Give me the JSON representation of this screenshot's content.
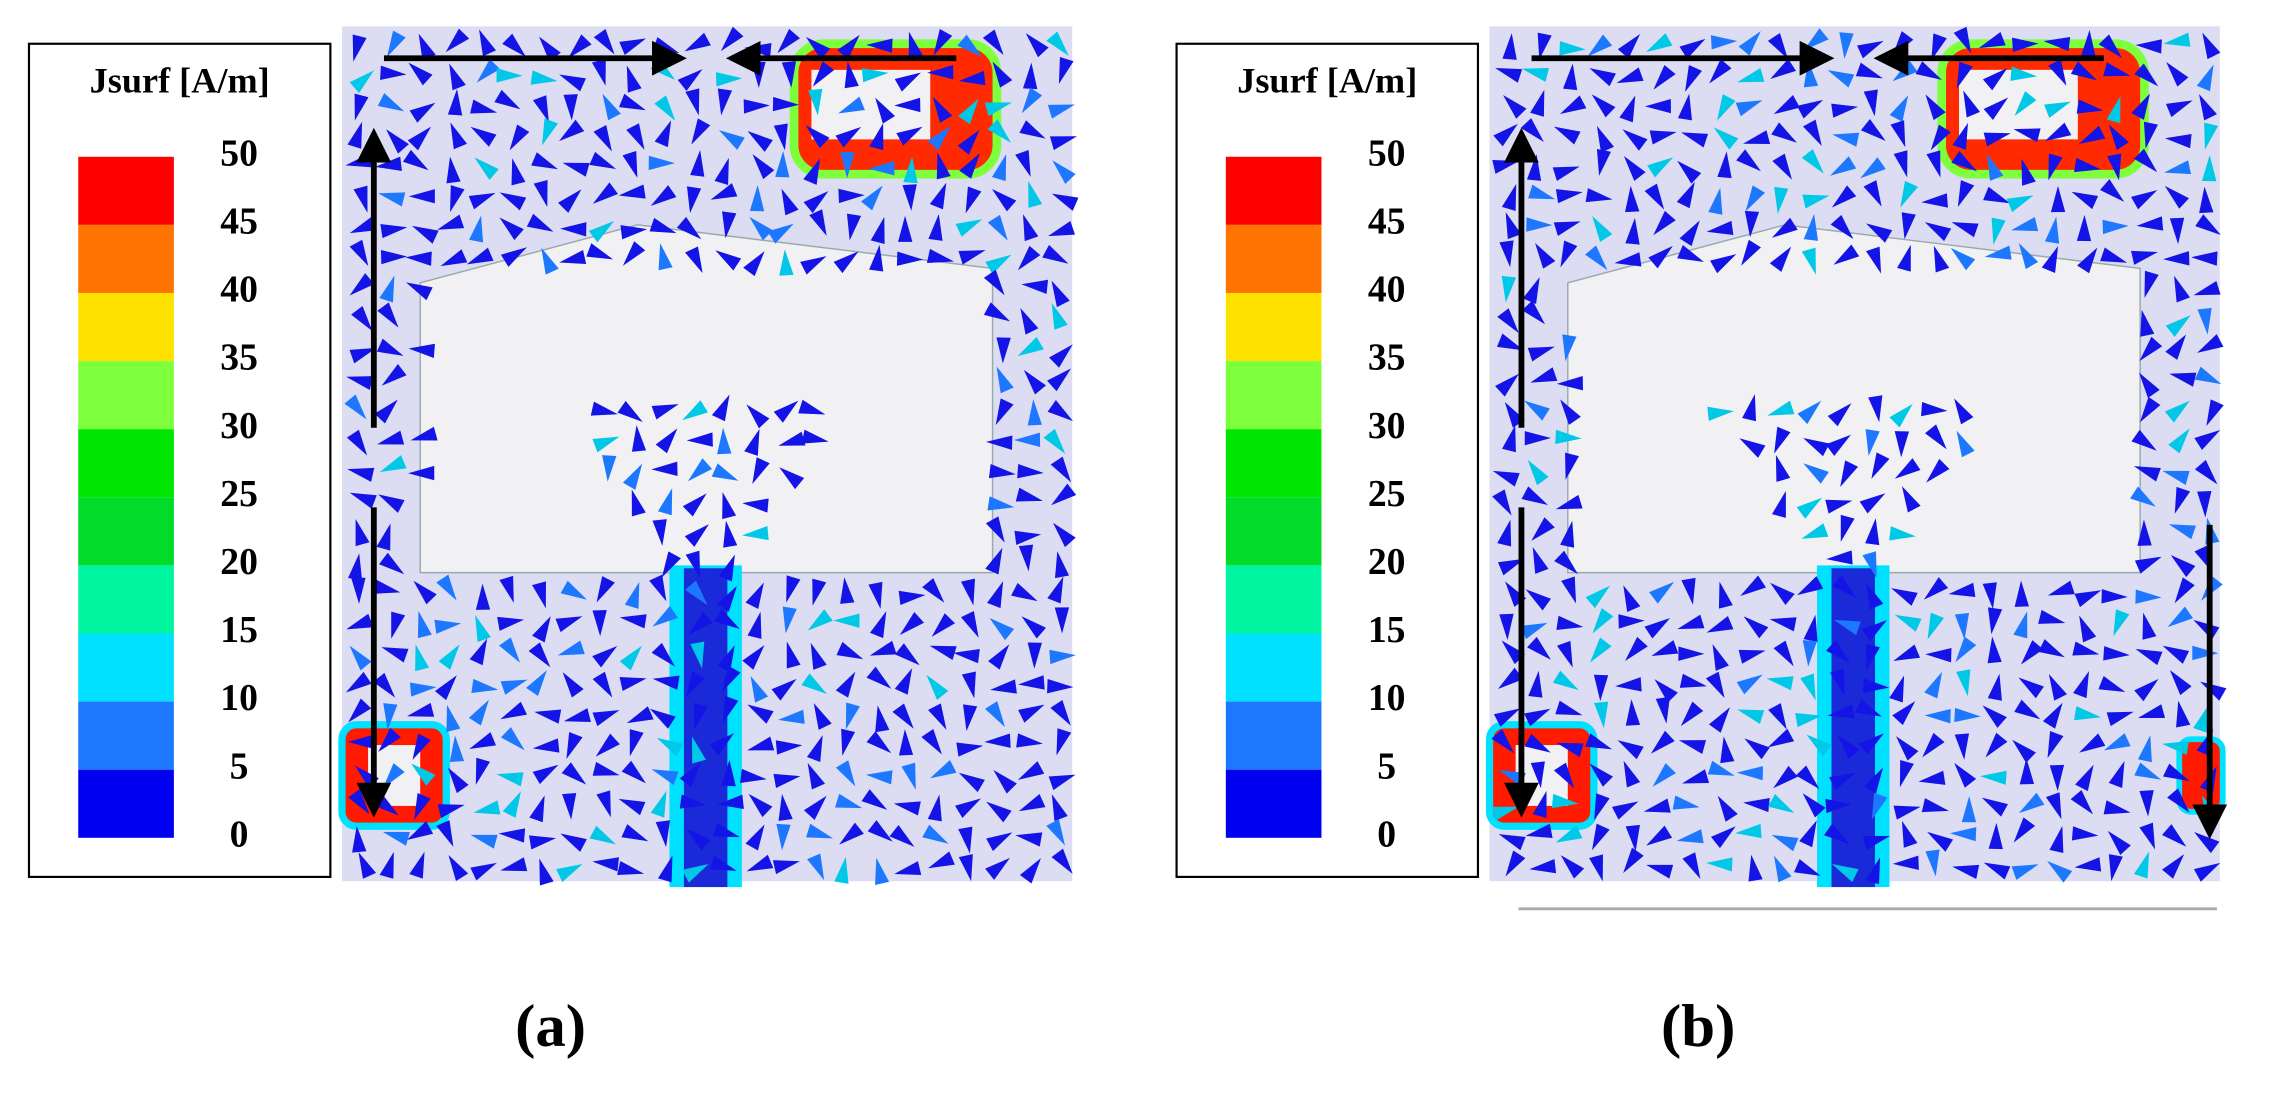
{
  "panels": [
    {
      "caption": "(a)",
      "legend": {
        "title": "Jsurf [A/m]",
        "ticks": [
          50,
          45,
          40,
          35,
          30,
          25,
          20,
          15,
          10,
          5,
          0
        ],
        "colors": [
          "#ff0000",
          "#ff7300",
          "#ffe100",
          "#7dff3c",
          "#00e600",
          "#00dc28",
          "#00f5a0",
          "#00e1ff",
          "#1e78ff",
          "#0000f0"
        ]
      }
    },
    {
      "caption": "(b)",
      "legend": {
        "title": "Jsurf [A/m]",
        "ticks": [
          50,
          45,
          40,
          35,
          30,
          25,
          20,
          15,
          10,
          5,
          0
        ],
        "colors": [
          "#ff0000",
          "#ff7300",
          "#ffe100",
          "#7dff3c",
          "#00e600",
          "#00dc28",
          "#00f5a0",
          "#00e1ff",
          "#1e78ff",
          "#0000f0"
        ]
      }
    }
  ]
}
